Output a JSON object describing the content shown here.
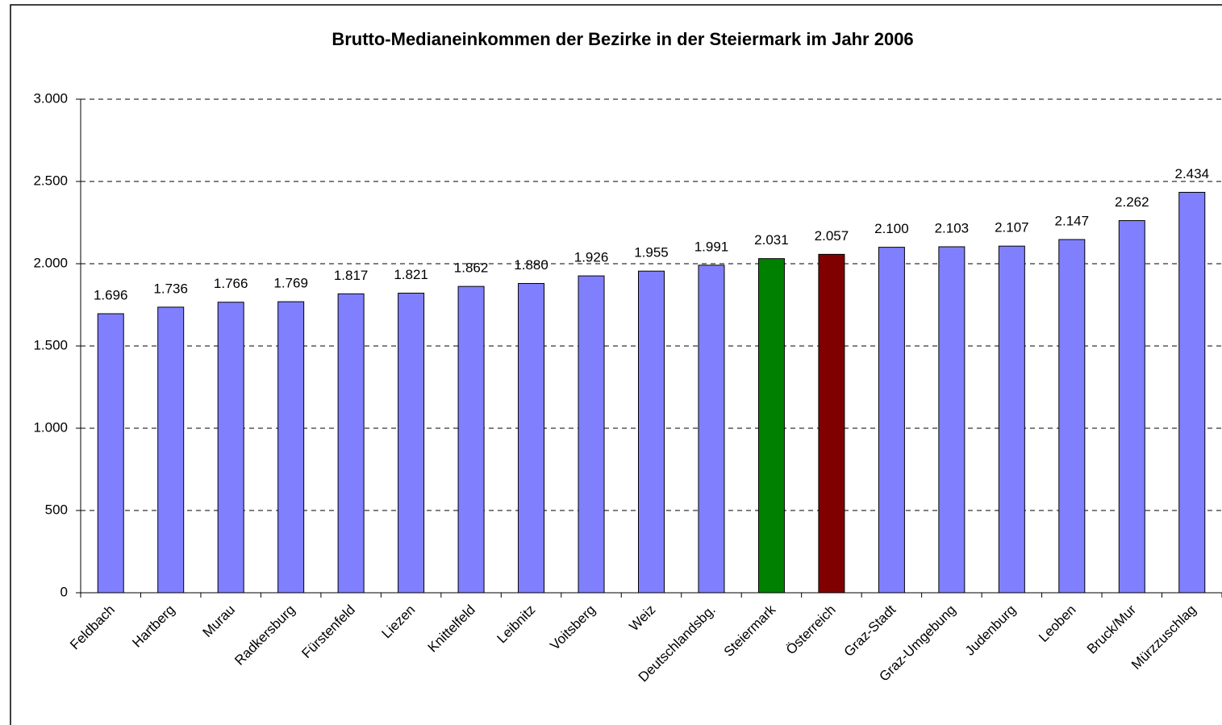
{
  "chart_data": {
    "type": "bar",
    "title": "Brutto-Medianeinkommen der Bezirke in der Steiermark im Jahr 2006",
    "categories": [
      "Feldbach",
      "Hartberg",
      "Murau",
      "Radkersburg",
      "Fürstenfeld",
      "Liezen",
      "Knittelfeld",
      "Leibnitz",
      "Voitsberg",
      "Weiz",
      "Deutschlandsbg.",
      "Steiermark",
      "Österreich",
      "Graz-Stadt",
      "Graz-Umgebung",
      "Judenburg",
      "Leoben",
      "Bruck/Mur",
      "Mürzzuschlag"
    ],
    "values": [
      1696,
      1736,
      1766,
      1769,
      1817,
      1821,
      1862,
      1880,
      1926,
      1955,
      1991,
      2031,
      2057,
      2100,
      2103,
      2107,
      2147,
      2262,
      2434
    ],
    "value_labels": [
      "1.696",
      "1.736",
      "1.766",
      "1.769",
      "1.817",
      "1.821",
      "1.862",
      "1.880",
      "1.926",
      "1.955",
      "1.991",
      "2.031",
      "2.057",
      "2.100",
      "2.103",
      "2.107",
      "2.147",
      "2.262",
      "2.434"
    ],
    "colors": [
      "#8080ff",
      "#8080ff",
      "#8080ff",
      "#8080ff",
      "#8080ff",
      "#8080ff",
      "#8080ff",
      "#8080ff",
      "#8080ff",
      "#8080ff",
      "#8080ff",
      "#008000",
      "#800000",
      "#8080ff",
      "#8080ff",
      "#8080ff",
      "#8080ff",
      "#8080ff",
      "#8080ff"
    ],
    "ylim": [
      0,
      3000
    ],
    "yticks": [
      0,
      500,
      {
        "value": 1000,
        "label": "1.000"
      },
      {
        "value": 1500,
        "label": "1.500"
      },
      {
        "value": 2000,
        "label": "2.000"
      },
      {
        "value": 2500,
        "label": "2.500"
      },
      {
        "value": 3000,
        "label": "3.000"
      }
    ],
    "grid": true
  }
}
